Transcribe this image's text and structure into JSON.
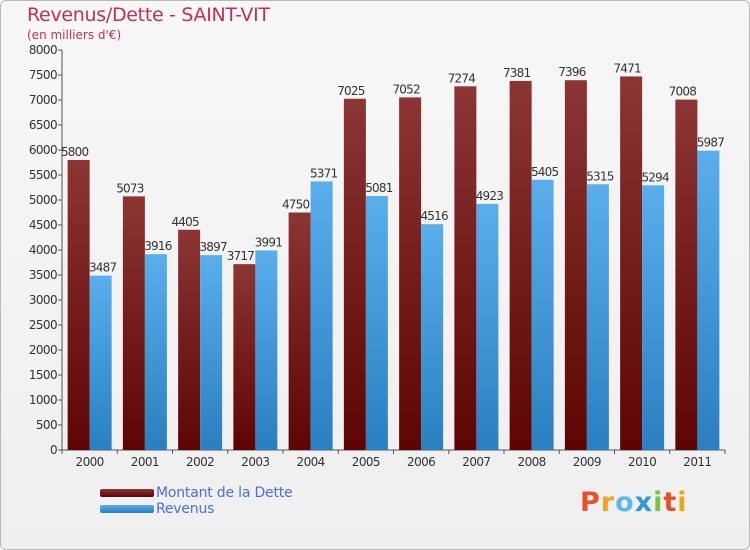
{
  "header": {
    "title": "Revenus/Dette - SAINT-VIT",
    "subtitle": "(en milliers d'€)"
  },
  "legend": {
    "items": [
      {
        "label": "Montant de la Dette",
        "color": "#7a1a1a"
      },
      {
        "label": "Revenus",
        "color": "#3aa0e8"
      }
    ]
  },
  "logo": {
    "text": "Proxiti",
    "colors": [
      "#e8502a",
      "#f2a51c",
      "#5cb8e8",
      "#2e9ad0",
      "#7cc242",
      "#e8502a",
      "#f2a51c"
    ]
  },
  "chart_data": {
    "type": "bar",
    "title": "Revenus/Dette - SAINT-VIT",
    "subtitle": "(en milliers d'€)",
    "xlabel": "",
    "ylabel": "",
    "categories": [
      "2000",
      "2001",
      "2002",
      "2003",
      "2004",
      "2005",
      "2006",
      "2007",
      "2008",
      "2009",
      "2010",
      "2011"
    ],
    "series": [
      {
        "name": "Montant de la Dette",
        "values": [
          5800,
          5073,
          4405,
          3717,
          4750,
          7025,
          7052,
          7274,
          7381,
          7396,
          7471,
          7008
        ]
      },
      {
        "name": "Revenus",
        "values": [
          3487,
          3916,
          3897,
          3991,
          5371,
          5081,
          4516,
          4923,
          5405,
          5315,
          5294,
          5987
        ]
      }
    ],
    "ylim": [
      0,
      8000
    ],
    "yticks": [
      0,
      500,
      1000,
      1500,
      2000,
      2500,
      3000,
      3500,
      4000,
      4500,
      5000,
      5500,
      6000,
      6500,
      7000,
      7500,
      8000
    ],
    "grid": false,
    "legend_position": "bottom-left"
  }
}
